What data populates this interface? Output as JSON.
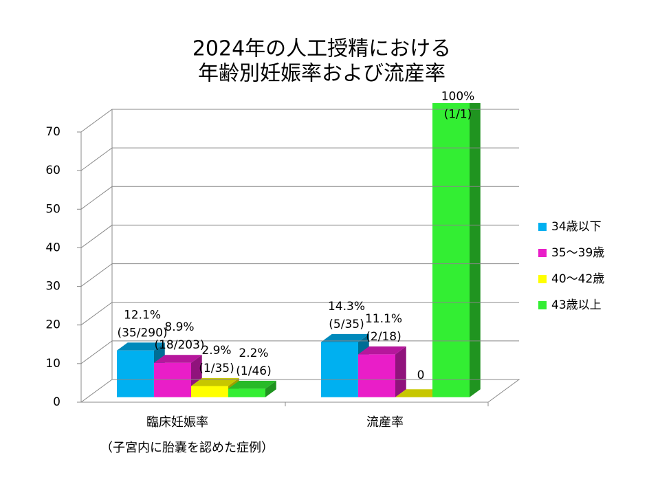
{
  "chart_data": {
    "type": "bar3d",
    "title": [
      "2024年の人工授精における",
      "年齢別妊娠率および流産率"
    ],
    "categories": [
      "臨床妊娠率",
      "流産率"
    ],
    "category_note": "（子宮内に胎嚢を認めた症例）",
    "series": [
      {
        "name": "34歳以下",
        "color": "#00b0f0",
        "values": [
          12.1,
          14.3
        ],
        "value_labels": [
          [
            "12.1%",
            "(35/290)"
          ],
          [
            "14.3%",
            "(5/35)"
          ]
        ]
      },
      {
        "name": "35～39歳",
        "color": "#e91ec8",
        "values": [
          8.9,
          11.1
        ],
        "value_labels": [
          [
            "8.9%",
            "(18/203)"
          ],
          [
            "11.1%",
            "(2/18)"
          ]
        ]
      },
      {
        "name": "40～42歳",
        "color": "#ffff00",
        "values": [
          2.9,
          0
        ],
        "value_labels": [
          [
            "2.9%",
            "(1/35)"
          ],
          [
            "0"
          ]
        ]
      },
      {
        "name": "43歳以上",
        "color": "#33ee33",
        "values": [
          2.2,
          100
        ],
        "value_labels": [
          [
            "2.2%",
            "(1/46)"
          ],
          [
            "100%",
            "(1/1)"
          ]
        ]
      }
    ],
    "ylim": [
      0,
      70
    ],
    "yticks": [
      0,
      10,
      20,
      30,
      40,
      50,
      60,
      70
    ],
    "grid": true,
    "legend": "right"
  }
}
